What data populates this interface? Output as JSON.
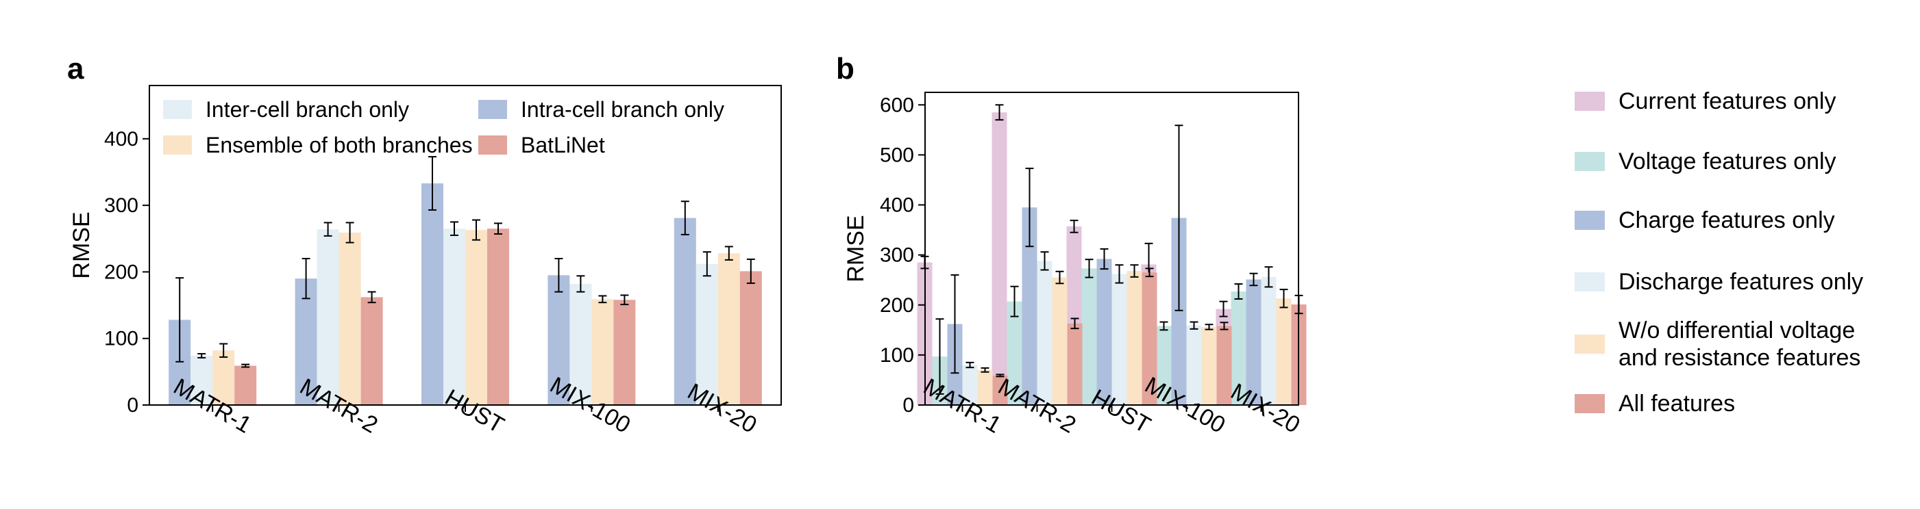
{
  "chart_data": [
    {
      "panel_label": "a",
      "type": "bar",
      "ylabel": "RMSE",
      "ylim": [
        0,
        480
      ],
      "yticks": [
        0,
        100,
        200,
        300,
        400
      ],
      "categories": [
        "MATR-1",
        "MATR-2",
        "HUST",
        "MIX-100",
        "MIX-20"
      ],
      "series": [
        {
          "name": "Intra-cell branch only",
          "color": "#aebfdd",
          "values": [
            128,
            190,
            333,
            195,
            281
          ],
          "errors": [
            63,
            30,
            40,
            25,
            25
          ]
        },
        {
          "name": "Inter-cell branch only",
          "color": "#e3eff4",
          "values": [
            74,
            264,
            265,
            182,
            212
          ],
          "errors": [
            3,
            10,
            10,
            12,
            18
          ]
        },
        {
          "name": "Ensemble of both branches",
          "color": "#fbe3c6",
          "values": [
            82,
            259,
            263,
            159,
            228
          ],
          "errors": [
            10,
            15,
            15,
            5,
            10
          ]
        },
        {
          "name": "BatLiNet",
          "color": "#e3a49c",
          "values": [
            59,
            162,
            265,
            158,
            201
          ],
          "errors": [
            2,
            8,
            8,
            7,
            18
          ]
        }
      ],
      "legend": {
        "placement": "top-left",
        "ncol": 2,
        "order": [
          1,
          0,
          2,
          3
        ]
      }
    },
    {
      "panel_label": "b",
      "type": "bar",
      "ylabel": "RMSE",
      "ylim": [
        0,
        625
      ],
      "yticks": [
        0,
        100,
        200,
        300,
        400,
        500,
        600
      ],
      "categories": [
        "MATR-1",
        "MATR-2",
        "HUST",
        "MIX-100",
        "MIX-20"
      ],
      "series": [
        {
          "name": "Current features only",
          "color": "#e3c5dc",
          "values": [
            285,
            585,
            357,
            281,
            192
          ],
          "errors": [
            12,
            15,
            12,
            42,
            15
          ]
        },
        {
          "name": "Voltage features only",
          "color": "#c3e3e2",
          "values": [
            97,
            207,
            273,
            158,
            227
          ],
          "errors": [
            75,
            30,
            18,
            8,
            15
          ]
        },
        {
          "name": "Charge features only",
          "color": "#aebfdd",
          "values": [
            162,
            395,
            292,
            374,
            251
          ],
          "errors": [
            98,
            78,
            20,
            185,
            12
          ]
        },
        {
          "name": "Discharge features only",
          "color": "#e3eff4",
          "values": [
            80,
            288,
            262,
            159,
            256
          ],
          "errors": [
            5,
            18,
            18,
            7,
            20
          ]
        },
        {
          "name": "W/o differential voltage\nand resistance features",
          "color": "#fbe3c6",
          "values": [
            70,
            255,
            268,
            156,
            213
          ],
          "errors": [
            4,
            12,
            12,
            5,
            18
          ]
        },
        {
          "name": "All features",
          "color": "#e3a49c",
          "values": [
            59,
            163,
            265,
            158,
            201
          ],
          "errors": [
            2,
            10,
            8,
            7,
            18
          ]
        }
      ],
      "legend": {
        "placement": "outside-right"
      }
    }
  ]
}
